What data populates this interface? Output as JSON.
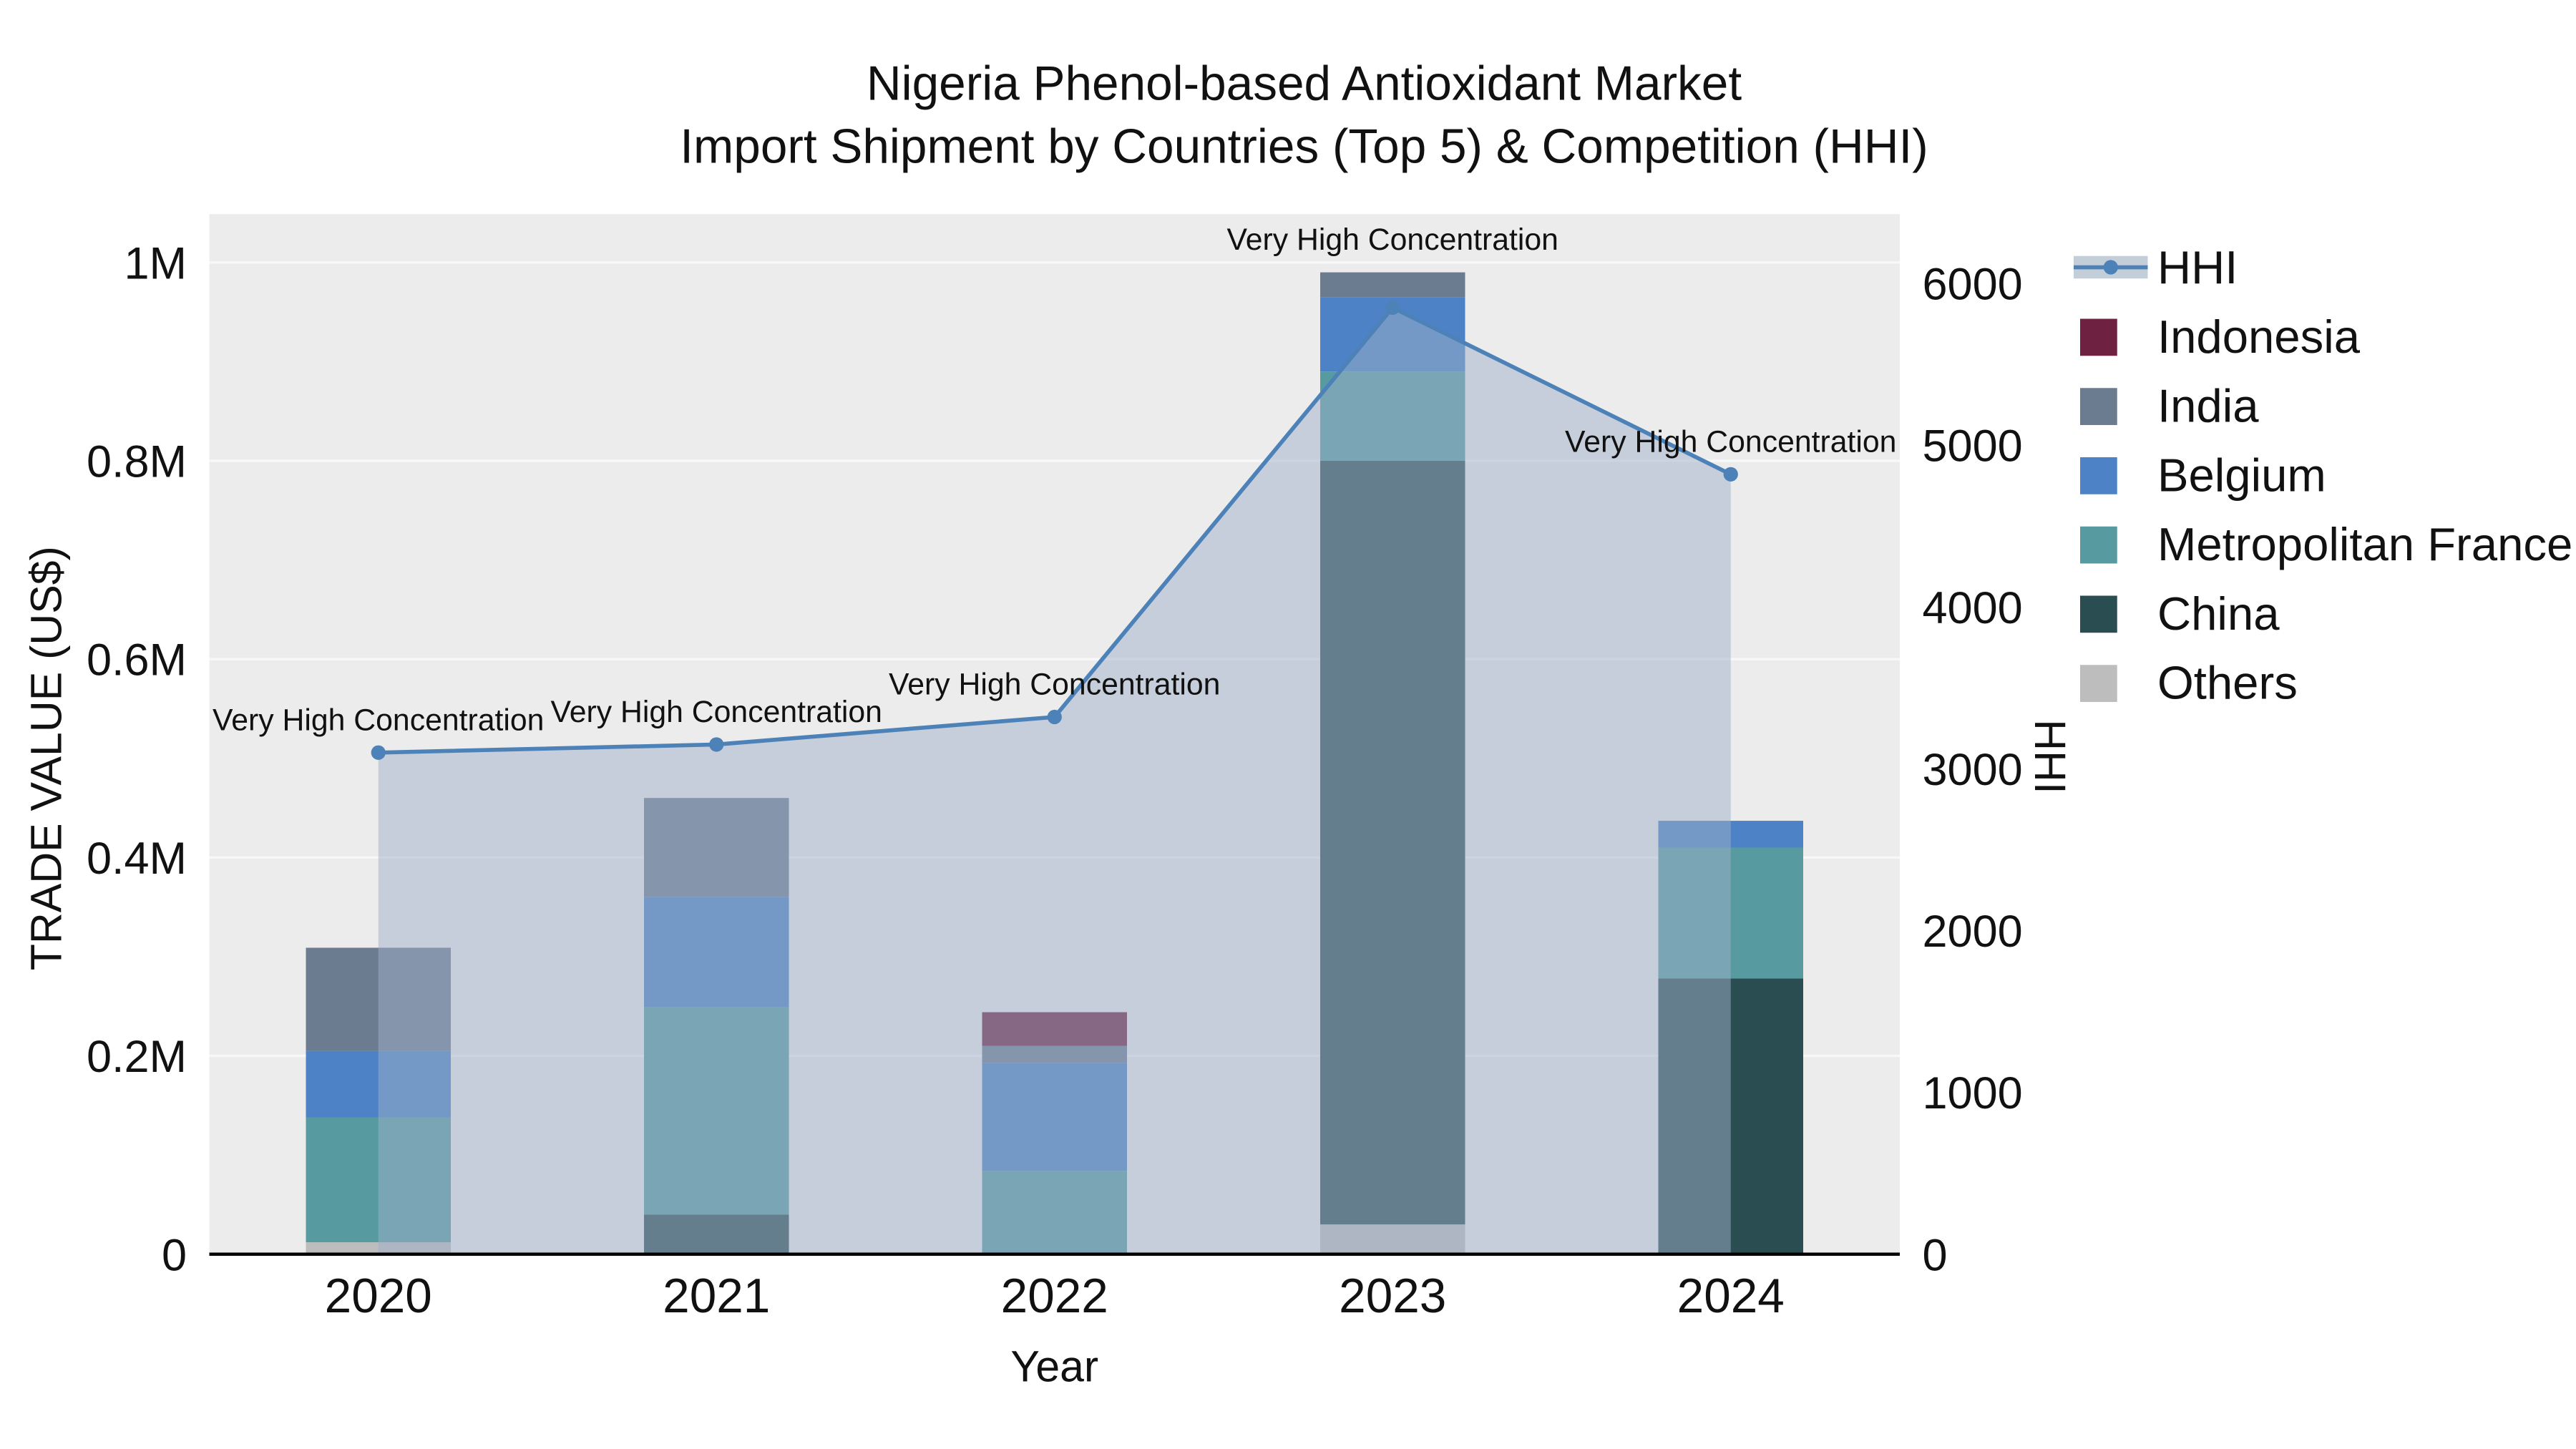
{
  "title": {
    "line1": "Nigeria Phenol-based Antioxidant Market",
    "line2": "Import Shipment by Countries (Top 5) & Competition (HHI)"
  },
  "chart_data": {
    "type": "combo-stacked-bar-line",
    "categories": [
      "2020",
      "2021",
      "2022",
      "2023",
      "2024"
    ],
    "bar_series": [
      {
        "name": "Others",
        "color": "#bdbdbd",
        "values": [
          12000,
          0,
          0,
          30000,
          0
        ]
      },
      {
        "name": "China",
        "color": "#2a4d52",
        "values": [
          0,
          40000,
          0,
          770000,
          278000
        ]
      },
      {
        "name": "Metropolitan France",
        "color": "#579ba0",
        "values": [
          126000,
          209000,
          84000,
          90000,
          132000
        ]
      },
      {
        "name": "Belgium",
        "color": "#4d82c6",
        "values": [
          67000,
          111000,
          109000,
          75000,
          27000
        ]
      },
      {
        "name": "India",
        "color": "#6c7c90",
        "values": [
          104000,
          100000,
          17000,
          25000,
          0
        ]
      },
      {
        "name": "Indonesia",
        "color": "#6e2140",
        "values": [
          0,
          0,
          34000,
          0,
          0
        ]
      }
    ],
    "line_series": {
      "name": "HHI",
      "color": "#4d82b8",
      "area_fill": "#9db0c7",
      "area_opacity": 0.5,
      "values": [
        3100,
        3150,
        3320,
        5850,
        4820
      ]
    },
    "annotations": [
      "Very High Concentration",
      "Very High Concentration",
      "Very High Concentration",
      "Very High Concentration",
      "Very High Concentration"
    ],
    "axes": {
      "left": {
        "title": "TRADE VALUE (US$)",
        "max": 1000000,
        "ticks": [
          {
            "value": 0,
            "label": "0"
          },
          {
            "value": 200000,
            "label": "0.2M"
          },
          {
            "value": 400000,
            "label": "0.4M"
          },
          {
            "value": 600000,
            "label": "0.6M"
          },
          {
            "value": 800000,
            "label": "0.8M"
          },
          {
            "value": 1000000,
            "label": "1M"
          }
        ]
      },
      "right": {
        "title": "HHI",
        "max": 6000,
        "ticks": [
          {
            "value": 0,
            "label": "0"
          },
          {
            "value": 1000,
            "label": "1000"
          },
          {
            "value": 2000,
            "label": "2000"
          },
          {
            "value": 3000,
            "label": "3000"
          },
          {
            "value": 4000,
            "label": "4000"
          },
          {
            "value": 5000,
            "label": "5000"
          },
          {
            "value": 6000,
            "label": "6000"
          }
        ]
      },
      "x": {
        "title": "Year"
      }
    },
    "legend": [
      {
        "name": "HHI",
        "type": "line",
        "color": "#4d82b8",
        "fill": "#c4ced9"
      },
      {
        "name": "Indonesia",
        "type": "square",
        "color": "#6e2140"
      },
      {
        "name": "India",
        "type": "square",
        "color": "#6c7c90"
      },
      {
        "name": "Belgium",
        "type": "square",
        "color": "#4d82c6"
      },
      {
        "name": "Metropolitan France",
        "type": "square",
        "color": "#579ba0"
      },
      {
        "name": "China",
        "type": "square",
        "color": "#2a4d52"
      },
      {
        "name": "Others",
        "type": "square",
        "color": "#bdbdbd"
      }
    ],
    "plot_background": "#ececec",
    "gridline_color": "#f8f8f8"
  }
}
